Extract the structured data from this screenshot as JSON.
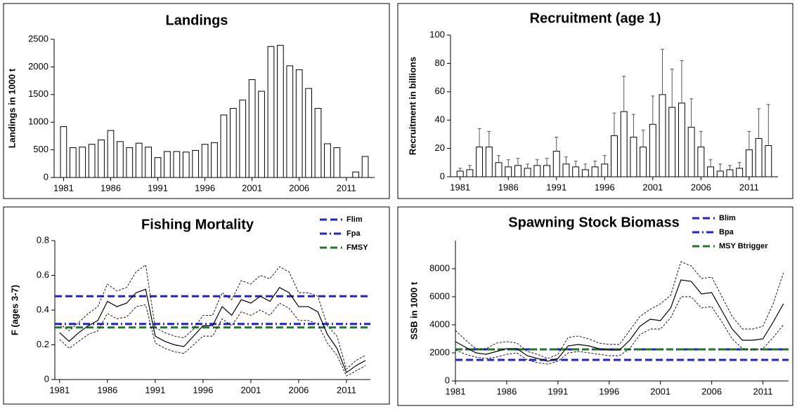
{
  "chart_data": [
    {
      "type": "bar",
      "title": "Landings",
      "y_label": "Landings in 1000 t",
      "x": [
        1981,
        1982,
        1983,
        1984,
        1985,
        1986,
        1987,
        1988,
        1989,
        1990,
        1991,
        1992,
        1993,
        1994,
        1995,
        1996,
        1997,
        1998,
        1999,
        2000,
        2001,
        2002,
        2003,
        2004,
        2005,
        2006,
        2007,
        2008,
        2009,
        2010,
        2011,
        2012,
        2013
      ],
      "values": [
        920,
        540,
        550,
        600,
        680,
        850,
        650,
        540,
        620,
        550,
        360,
        470,
        470,
        460,
        490,
        600,
        630,
        1130,
        1250,
        1400,
        1770,
        1560,
        2370,
        2390,
        2020,
        1950,
        1610,
        1250,
        610,
        540,
        null,
        100,
        380
      ],
      "color": "#ffffff",
      "xlim": [
        1980,
        2014
      ],
      "xticks": [
        1981,
        1986,
        1991,
        1996,
        2001,
        2006,
        2011
      ],
      "ylim": [
        0,
        2500
      ],
      "yticks": [
        0,
        500,
        1000,
        1500,
        2000,
        2500
      ]
    },
    {
      "type": "bar",
      "title": "Recruitment (age 1)",
      "y_label": "Recruitment in billions",
      "x": [
        1981,
        1982,
        1983,
        1984,
        1985,
        1986,
        1987,
        1988,
        1989,
        1990,
        1991,
        1992,
        1993,
        1994,
        1995,
        1996,
        1997,
        1998,
        1999,
        2000,
        2001,
        2002,
        2003,
        2004,
        2005,
        2006,
        2007,
        2008,
        2009,
        2010,
        2011,
        2012,
        2013
      ],
      "values": [
        4,
        5,
        21,
        21,
        10,
        7,
        8,
        6,
        8,
        8,
        18,
        9,
        7,
        5,
        7,
        9,
        29,
        46,
        28,
        21,
        37,
        58,
        49,
        52,
        35,
        21,
        7,
        4,
        5,
        6,
        19,
        27,
        22
      ],
      "upper": [
        6,
        8,
        34,
        32,
        15,
        12,
        13,
        9,
        12,
        13,
        28,
        14,
        11,
        9,
        11,
        15,
        45,
        71,
        44,
        33,
        57,
        90,
        76,
        82,
        55,
        32,
        12,
        9,
        8,
        10,
        32,
        48,
        51
      ],
      "color": "#ffffff",
      "xlim": [
        1980,
        2014
      ],
      "xticks": [
        1981,
        1986,
        1991,
        1996,
        2001,
        2006,
        2011
      ],
      "ylim": [
        0,
        100
      ],
      "yticks": [
        0,
        20,
        40,
        60,
        80,
        100
      ]
    },
    {
      "type": "line",
      "title": "Fishing Mortality",
      "y_label": "F (ages 3-7)",
      "x": [
        1981,
        1982,
        1983,
        1984,
        1985,
        1986,
        1987,
        1988,
        1989,
        1990,
        1991,
        1992,
        1993,
        1994,
        1995,
        1996,
        1997,
        1998,
        1999,
        2000,
        2001,
        2002,
        2003,
        2004,
        2005,
        2006,
        2007,
        2008,
        2009,
        2010,
        2011,
        2012,
        2013
      ],
      "values": [
        0.27,
        0.22,
        0.27,
        0.31,
        0.34,
        0.45,
        0.42,
        0.44,
        0.5,
        0.52,
        0.25,
        0.22,
        0.2,
        0.19,
        0.25,
        0.31,
        0.31,
        0.42,
        0.37,
        0.46,
        0.44,
        0.48,
        0.45,
        0.53,
        0.5,
        0.42,
        0.42,
        0.39,
        0.26,
        0.18,
        0.04,
        0.08,
        0.11
      ],
      "upper": [
        0.32,
        0.28,
        0.33,
        0.38,
        0.42,
        0.55,
        0.51,
        0.53,
        0.62,
        0.66,
        0.3,
        0.27,
        0.25,
        0.24,
        0.29,
        0.37,
        0.37,
        0.5,
        0.46,
        0.57,
        0.55,
        0.6,
        0.58,
        0.65,
        0.62,
        0.5,
        0.5,
        0.48,
        0.31,
        0.25,
        0.06,
        0.11,
        0.14
      ],
      "lower": [
        0.23,
        0.18,
        0.22,
        0.26,
        0.28,
        0.38,
        0.35,
        0.36,
        0.42,
        0.43,
        0.21,
        0.18,
        0.16,
        0.15,
        0.2,
        0.25,
        0.25,
        0.35,
        0.31,
        0.39,
        0.37,
        0.4,
        0.37,
        0.44,
        0.41,
        0.34,
        0.34,
        0.32,
        0.21,
        0.14,
        0.02,
        0.05,
        0.08
      ],
      "color": "#000000",
      "reference_lines": [
        {
          "name": "Flim",
          "value": 0.48,
          "color": "#1f1fe0",
          "style": "dash"
        },
        {
          "name": "Fpa",
          "value": 0.32,
          "color": "#1f1fe0",
          "style": "dashdot"
        },
        {
          "name": "FMSY",
          "value": 0.3,
          "color": "#1e7a1e",
          "style": "dash"
        }
      ],
      "xlim": [
        1980.5,
        2013.5
      ],
      "xticks": [
        1981,
        1986,
        1991,
        1996,
        2001,
        2006,
        2011
      ],
      "ylim": [
        0,
        0.8
      ],
      "yticks": [
        0,
        0.2,
        0.4,
        0.6,
        0.8
      ]
    },
    {
      "type": "line",
      "title": "Spawning Stock Biomass",
      "y_label": "SSB in 1000 t",
      "x": [
        1981,
        1982,
        1983,
        1984,
        1985,
        1986,
        1987,
        1988,
        1989,
        1990,
        1991,
        1992,
        1993,
        1994,
        1995,
        1996,
        1997,
        1998,
        1999,
        2000,
        2001,
        2002,
        2003,
        2004,
        2005,
        2006,
        2007,
        2008,
        2009,
        2010,
        2011,
        2012,
        2013
      ],
      "values": [
        2800,
        2400,
        2000,
        1900,
        2100,
        2300,
        2300,
        1800,
        1600,
        1400,
        1600,
        2500,
        2600,
        2500,
        2300,
        2200,
        2200,
        2900,
        3900,
        4400,
        4300,
        5200,
        7200,
        7100,
        6200,
        6300,
        5000,
        3700,
        2900,
        2900,
        3000,
        4200,
        5500
      ],
      "upper": [
        3600,
        2900,
        2300,
        2300,
        2700,
        2800,
        2700,
        2100,
        1900,
        1600,
        1900,
        3100,
        3200,
        3000,
        2700,
        2600,
        2600,
        3600,
        4600,
        5100,
        5500,
        6100,
        8500,
        8200,
        7300,
        7400,
        6000,
        4600,
        3700,
        3700,
        3900,
        5500,
        7700
      ],
      "lower": [
        2200,
        1900,
        1700,
        1600,
        1700,
        1900,
        2000,
        1500,
        1300,
        1200,
        1400,
        2000,
        2100,
        2000,
        1900,
        1800,
        1800,
        2300,
        3300,
        3700,
        3700,
        4500,
        6000,
        6000,
        5200,
        5300,
        4200,
        3000,
        2300,
        2200,
        2300,
        3100,
        4000
      ],
      "color": "#000000",
      "reference_lines": [
        {
          "name": "Blim",
          "value": 1500,
          "color": "#1f1fe0",
          "style": "dash"
        },
        {
          "name": "Bpa",
          "value": 2250,
          "color": "#1f1fe0",
          "style": "dashdot"
        },
        {
          "name": "MSY Btrigger",
          "value": 2250,
          "color": "#1e7a1e",
          "style": "dash"
        }
      ],
      "xlim": [
        1981,
        2013.5
      ],
      "xticks": [
        1981,
        1986,
        1991,
        1996,
        2001,
        2006,
        2011
      ],
      "ylim": [
        0,
        10000
      ],
      "yticks": [
        0,
        2000,
        4000,
        6000,
        8000
      ]
    }
  ]
}
